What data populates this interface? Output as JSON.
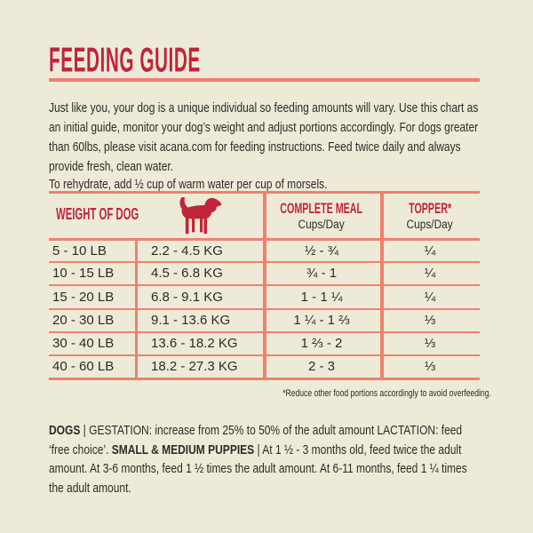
{
  "theme": {
    "bg": "#edebd8",
    "accent_red": "#c2243a",
    "line_salmon": "#f0806f",
    "text_dark": "#2c2b26"
  },
  "header": {
    "title": "FEEDING GUIDE"
  },
  "intro": {
    "paragraph": "Just like you, your dog is a unique individual so feeding amounts will vary. Use this chart as an initial guide, monitor your dog’s weight and adjust portions accordingly. For dogs greater than 60lbs, please visit acana.com for feeding instructions. Feed twice daily and always provide fresh, clean water.",
    "rehydrate": "To rehydrate, add ½ cup of warm water per cup of morsels."
  },
  "table": {
    "headers": {
      "weight": "WEIGHT OF DOG",
      "dog_icon": "dog-silhouette-icon",
      "meal": "COMPLETE MEAL",
      "meal_sub": "Cups/Day",
      "topper": "TOPPER*",
      "topper_sub": "Cups/Day"
    },
    "rows": [
      {
        "lb": "5 - 10 LB",
        "kg": "2.2 - 4.5 KG",
        "meal": "½ - ¾",
        "topper": "¼"
      },
      {
        "lb": "10 - 15 LB",
        "kg": "4.5 - 6.8 KG",
        "meal": "¾ - 1",
        "topper": "¼"
      },
      {
        "lb": "15 - 20 LB",
        "kg": "6.8 - 9.1 KG",
        "meal": "1 - 1 ¼",
        "topper": "¼"
      },
      {
        "lb": "20 - 30 LB",
        "kg": "9.1 - 13.6 KG",
        "meal": "1 ¼ - 1 ⅔",
        "topper": "⅓"
      },
      {
        "lb": "30 - 40 LB",
        "kg": "13.6 - 18.2 KG",
        "meal": "1 ⅔ - 2",
        "topper": "⅓"
      },
      {
        "lb": "40 - 60 LB",
        "kg": "18.2 - 27.3 KG",
        "meal": "2 - 3",
        "topper": "⅓"
      }
    ]
  },
  "footnote": "*Reduce other food portions accordingly to avoid overfeeding.",
  "care_notes": {
    "segments": [
      {
        "text": "DOGS",
        "bold": true
      },
      {
        "text": " | GESTATION: increase from 25% to 50% of the adult amount LACTATION: feed ‘free choice’. ",
        "bold": false
      },
      {
        "text": "SMALL & MEDIUM PUPPIES",
        "bold": true
      },
      {
        "text": " | At 1 ½ - 3 months old, feed twice the adult amount. At 3-6 months, feed 1 ½ times the adult amount. At 6-11 months, feed 1 ¼ times the adult amount.",
        "bold": false
      }
    ]
  }
}
